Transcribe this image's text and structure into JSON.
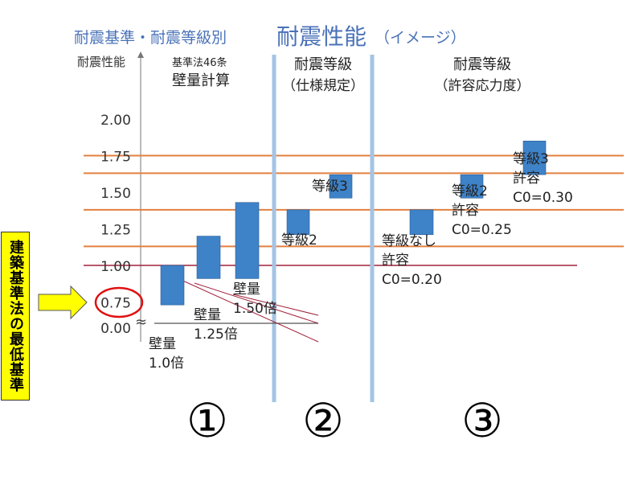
{
  "title": {
    "prefix": "耐震基準・耐震等級別",
    "main": "耐震性能",
    "suffix": "（イメージ）"
  },
  "colors": {
    "title": "#4a72b8",
    "bar": "#3e82c8",
    "hline": "#e28040",
    "baseline": "#a0203a",
    "divider": "#a4c4e4",
    "callout": "#ffff00",
    "circle": "#e01010"
  },
  "sections": [
    {
      "number": "①",
      "heading_small": "基準法46条",
      "heading": "壁量計算"
    },
    {
      "number": "②",
      "heading": "耐震等級",
      "subheading": "（仕様規定）"
    },
    {
      "number": "③",
      "heading": "耐震等級",
      "subheading": "（許容応力度）"
    }
  ],
  "sidebar_label": "建築基準法の最低基準",
  "chart_data": {
    "type": "bar",
    "ylabel": "耐震性能",
    "yticks": [
      "2.00",
      "1.75",
      "1.50",
      "1.25",
      "1.00",
      "0.75",
      "0.00"
    ],
    "ytick_values": [
      2.0,
      1.75,
      1.5,
      1.25,
      1.0,
      0.75,
      0.0
    ],
    "axis_break": "≈",
    "highlighted_tick": "0.75",
    "reference_lines": [
      1.75,
      1.63,
      1.38,
      1.13
    ],
    "baseline_line": 1.0,
    "grid": false,
    "bars": [
      {
        "section": 1,
        "low": 0.73,
        "high": 1.0,
        "label_lines": [
          "壁量",
          "1.0倍"
        ]
      },
      {
        "section": 1,
        "low": 0.91,
        "high": 1.2,
        "label_lines": [
          "壁量",
          "1.25倍"
        ]
      },
      {
        "section": 1,
        "low": 0.91,
        "high": 1.43,
        "label_lines": [
          "壁量",
          "1.50倍"
        ]
      },
      {
        "section": 2,
        "low": 1.21,
        "high": 1.38,
        "label_lines": [
          "等級2"
        ]
      },
      {
        "section": 2,
        "low": 1.46,
        "high": 1.62,
        "label_lines": [
          "等級3"
        ]
      },
      {
        "section": 3,
        "low": 1.21,
        "high": 1.38,
        "label_lines": [
          "等級なし",
          "許容",
          "C0=0.20"
        ]
      },
      {
        "section": 3,
        "low": 1.46,
        "high": 1.62,
        "label_lines": [
          "等級2",
          "許容",
          "C0=0.25"
        ]
      },
      {
        "section": 3,
        "low": 1.62,
        "high": 1.85,
        "label_lines": [
          "等級3",
          "許容",
          "C0=0.30"
        ]
      }
    ]
  }
}
